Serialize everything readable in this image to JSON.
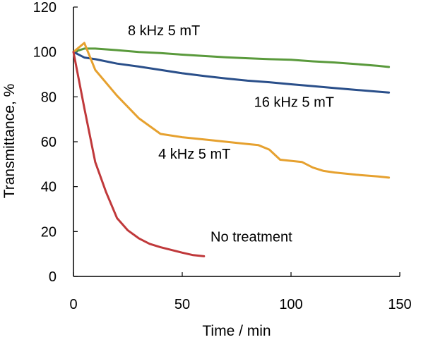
{
  "chart_data": {
    "type": "line",
    "title": "",
    "xlabel": "Time / min",
    "ylabel": "Transmittance, %",
    "xlim": [
      0,
      150
    ],
    "ylim": [
      0,
      120
    ],
    "xticks": [
      0,
      50,
      100,
      150
    ],
    "yticks": [
      0,
      20,
      40,
      60,
      80,
      100,
      120
    ],
    "grid": false,
    "legend": "none",
    "series": [
      {
        "name": "8 kHz 5 mT",
        "color": "#5a9a3c",
        "x": [
          0,
          5,
          10,
          20,
          30,
          40,
          50,
          60,
          70,
          80,
          90,
          100,
          110,
          120,
          130,
          140,
          145
        ],
        "y": [
          100,
          101.5,
          101.5,
          100.8,
          100,
          99.5,
          98.8,
          98.2,
          97.6,
          97.2,
          96.8,
          96.5,
          95.8,
          95.3,
          94.6,
          93.8,
          93.3
        ]
      },
      {
        "name": "16 kHz 5 mT",
        "color": "#2a4f8a",
        "x": [
          0,
          5,
          10,
          20,
          30,
          40,
          50,
          60,
          70,
          80,
          90,
          100,
          110,
          120,
          130,
          140,
          145
        ],
        "y": [
          100,
          97.5,
          96.8,
          94.8,
          93.5,
          92,
          90.5,
          89.3,
          88.2,
          87.2,
          86.5,
          85.6,
          84.8,
          83.9,
          83.1,
          82.3,
          81.9
        ]
      },
      {
        "name": "4 kHz 5 mT",
        "color": "#e6a12f",
        "x": [
          0,
          5,
          10,
          20,
          30,
          40,
          50,
          60,
          70,
          80,
          85,
          90,
          95,
          100,
          105,
          110,
          115,
          120,
          130,
          140,
          145
        ],
        "y": [
          100,
          104,
          92,
          80.5,
          70.5,
          63.5,
          62,
          61,
          60,
          59,
          58.5,
          56.5,
          52,
          51.5,
          51,
          48.5,
          47,
          46.3,
          45.3,
          44.5,
          44
        ]
      },
      {
        "name": "No treatment",
        "color": "#c0393b",
        "x": [
          0,
          5,
          10,
          15,
          20,
          25,
          30,
          35,
          40,
          45,
          50,
          55,
          60
        ],
        "y": [
          100,
          75,
          51,
          37.5,
          26,
          20.5,
          17,
          14.5,
          13,
          11.8,
          10.6,
          9.5,
          9
        ]
      }
    ],
    "annotations": [
      {
        "text": "8 kHz 5 mT",
        "series": 0,
        "x": 25,
        "y": 107.5
      },
      {
        "text": "16 kHz 5 mT",
        "series": 1,
        "x": 83,
        "y": 75.5
      },
      {
        "text": "4 kHz 5 mT",
        "series": 2,
        "x": 39,
        "y": 52.5
      },
      {
        "text": "No treatment",
        "series": 3,
        "x": 63,
        "y": 15.5
      }
    ]
  }
}
